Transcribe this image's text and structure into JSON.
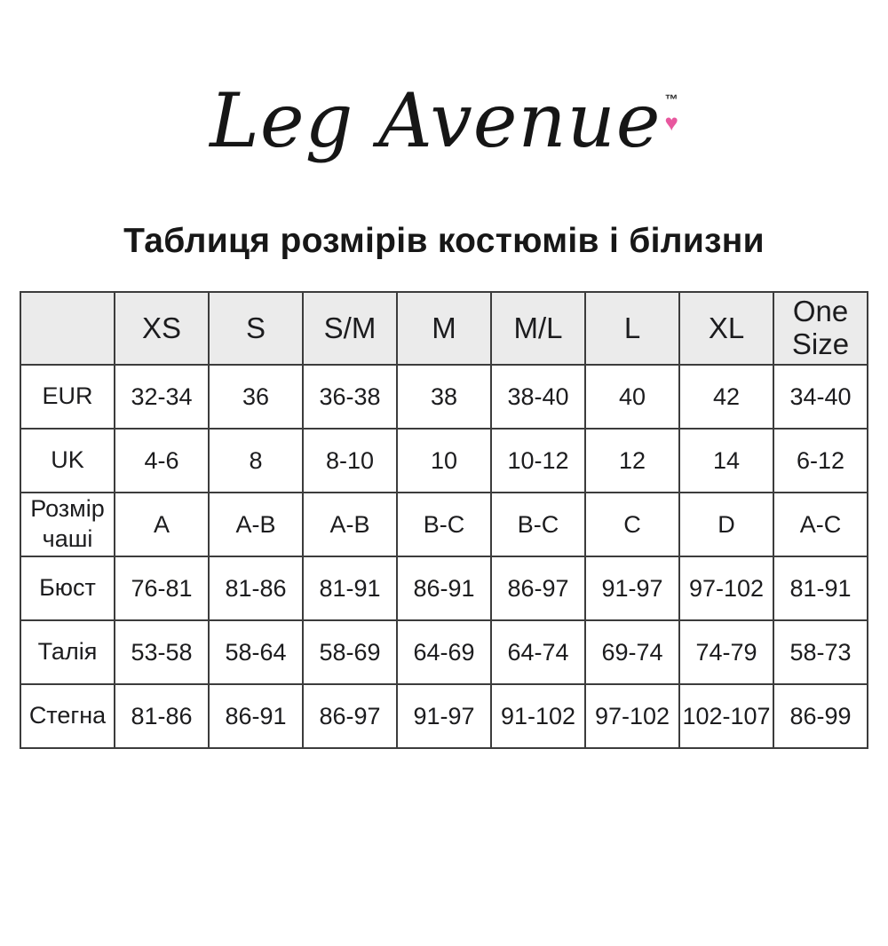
{
  "logo": {
    "brand": "Leg Avenue",
    "trademark": "™",
    "heart_glyph": "♥",
    "heart_color": "#e8579e"
  },
  "title": "Таблиця розмірів костюмів і білизни",
  "table": {
    "corner_label": "",
    "columns": [
      "XS",
      "S",
      "S/M",
      "M",
      "M/L",
      "L",
      "XL",
      "One Size"
    ],
    "rows": [
      {
        "label": "EUR",
        "values": [
          "32-34",
          "36",
          "36-38",
          "38",
          "38-40",
          "40",
          "42",
          "34-40"
        ]
      },
      {
        "label": "UK",
        "values": [
          "4-6",
          "8",
          "8-10",
          "10",
          "10-12",
          "12",
          "14",
          "6-12"
        ]
      },
      {
        "label": "Розмір чаші",
        "values": [
          "A",
          "A-B",
          "A-B",
          "B-C",
          "B-C",
          "C",
          "D",
          "A-C"
        ]
      },
      {
        "label": "Бюст",
        "values": [
          "76-81",
          "81-86",
          "81-91",
          "86-91",
          "86-97",
          "91-97",
          "97-102",
          "81-91"
        ]
      },
      {
        "label": "Талія",
        "values": [
          "53-58",
          "58-64",
          "58-69",
          "64-69",
          "64-74",
          "69-74",
          "74-79",
          "58-73"
        ]
      },
      {
        "label": "Стегна",
        "values": [
          "81-86",
          "86-91",
          "86-97",
          "91-97",
          "91-102",
          "97-102",
          "102-107",
          "86-99"
        ]
      }
    ],
    "header_bg": "#ebebeb",
    "border_color": "#3c3c3c"
  }
}
